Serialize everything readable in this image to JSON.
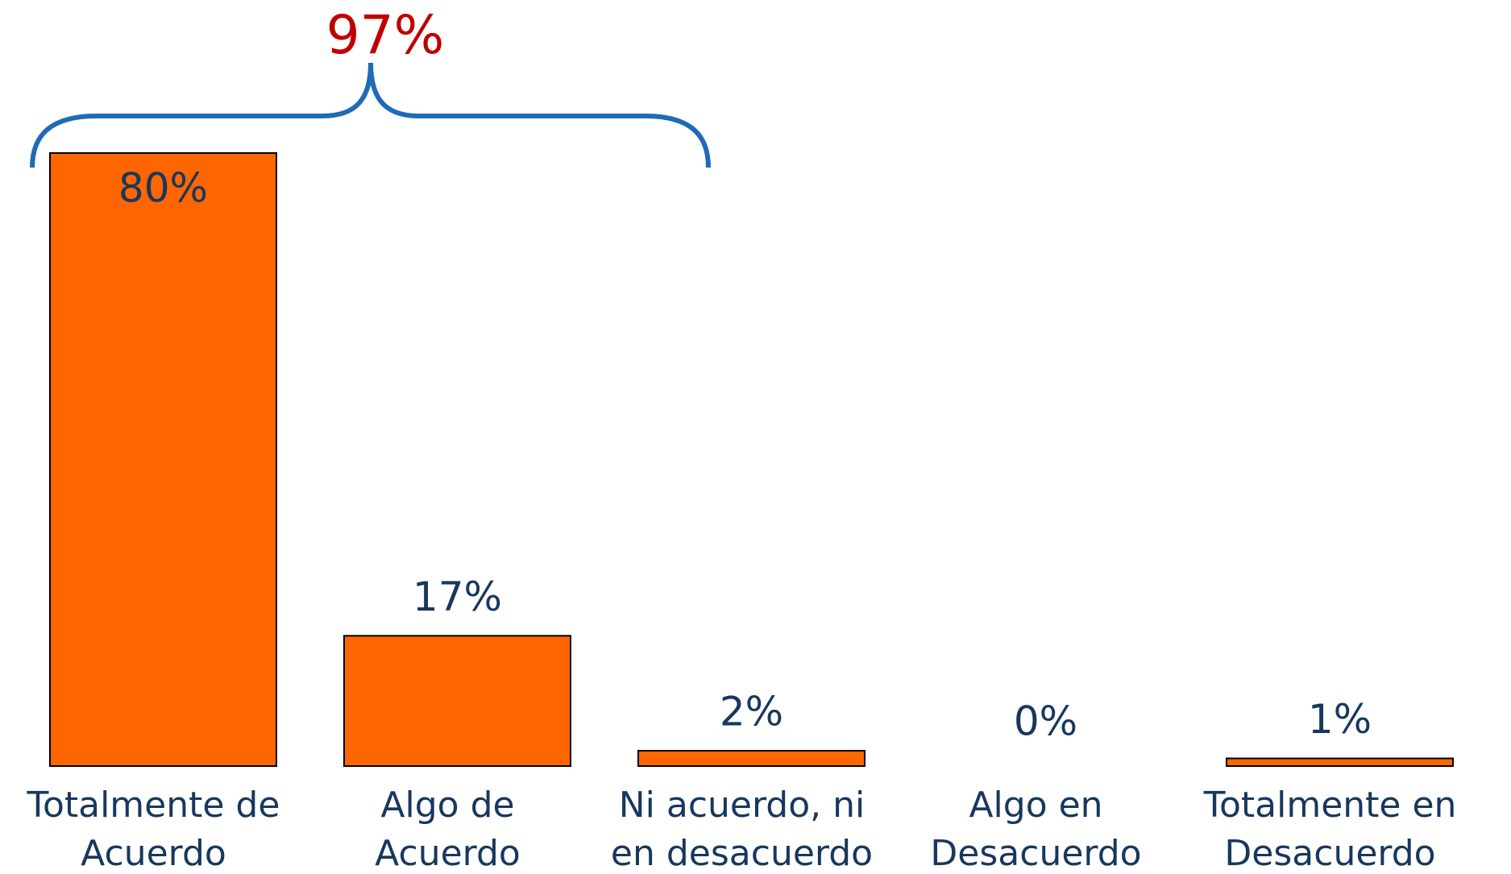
{
  "chart_data": {
    "type": "bar",
    "categories": [
      "Totalmente de\nAcuerdo",
      "Algo de\nAcuerdo",
      "Ni acuerdo, ni\nen desacuerdo",
      "Algo en\nDesacuerdo",
      "Totalmente en\nDesacuerdo"
    ],
    "values": [
      80,
      17,
      2,
      0,
      1
    ],
    "value_labels": [
      "80%",
      "17%",
      "2%",
      "0%",
      "1%"
    ],
    "color": "#ff6600",
    "ylim": [
      0,
      80
    ],
    "annotation": "97%"
  }
}
